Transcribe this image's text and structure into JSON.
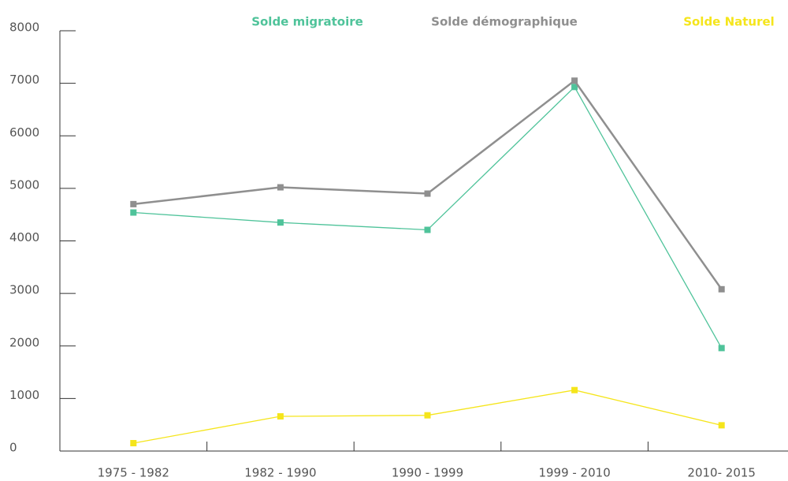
{
  "chart_data": {
    "type": "line",
    "categories": [
      "1975 - 1982",
      "1982 - 1990",
      "1990 - 1999",
      "1999 - 2010",
      "2010- 2015"
    ],
    "series": [
      {
        "name": "Solde migratoire",
        "color": "#4fc39a",
        "values": [
          4540,
          4350,
          4210,
          6930,
          1960
        ]
      },
      {
        "name": "Solde démographique",
        "color": "#8f8f8f",
        "values": [
          4700,
          5020,
          4900,
          7050,
          3080
        ]
      },
      {
        "name": "Solde Naturel",
        "color": "#f5e51b",
        "values": [
          150,
          660,
          680,
          1160,
          490
        ]
      }
    ],
    "ylim": [
      0,
      8000
    ],
    "yticks": [
      0,
      1000,
      2000,
      3000,
      4000,
      5000,
      6000,
      7000,
      8000
    ]
  }
}
